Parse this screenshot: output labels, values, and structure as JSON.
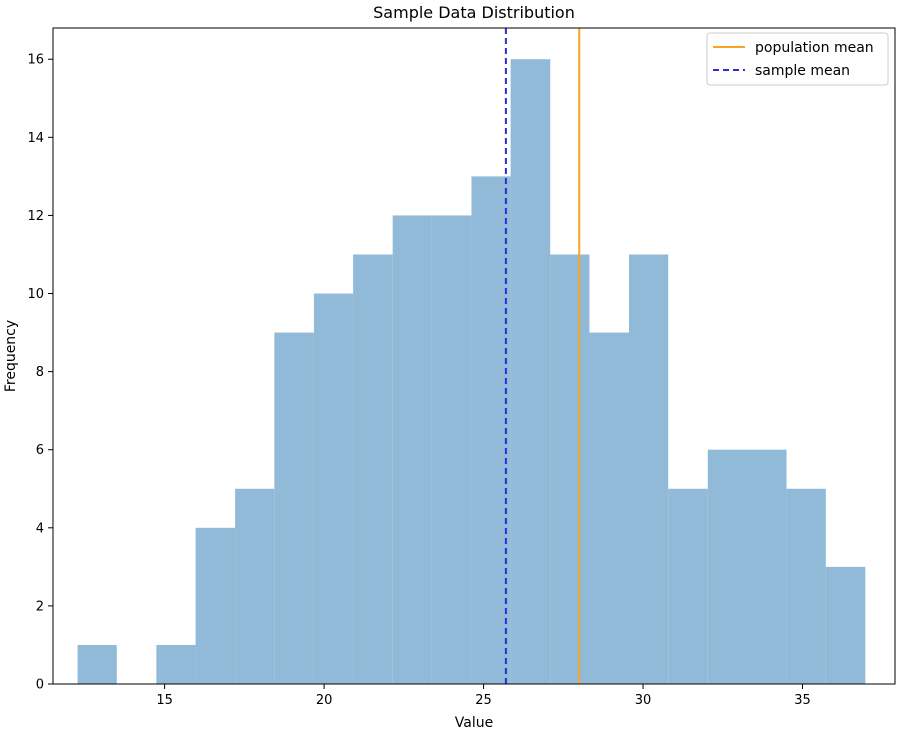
{
  "chart_data": {
    "type": "bar",
    "title": "Sample Data Distribution",
    "xlabel": "Value",
    "ylabel": "Frequency",
    "xlim": [
      11.5,
      37.9
    ],
    "ylim": [
      0,
      16.8
    ],
    "xticks": [
      15,
      20,
      25,
      30,
      35
    ],
    "yticks": [
      0,
      2,
      4,
      6,
      8,
      10,
      12,
      14,
      16
    ],
    "bins": [
      {
        "start": 12.27,
        "end": 13.5,
        "count": 1
      },
      {
        "start": 13.5,
        "end": 14.74,
        "count": 0
      },
      {
        "start": 14.74,
        "end": 15.97,
        "count": 1
      },
      {
        "start": 15.97,
        "end": 17.21,
        "count": 4
      },
      {
        "start": 17.21,
        "end": 18.44,
        "count": 5
      },
      {
        "start": 18.44,
        "end": 19.68,
        "count": 9
      },
      {
        "start": 19.68,
        "end": 20.91,
        "count": 10
      },
      {
        "start": 20.91,
        "end": 22.15,
        "count": 11
      },
      {
        "start": 22.15,
        "end": 23.38,
        "count": 12
      },
      {
        "start": 23.38,
        "end": 24.62,
        "count": 12
      },
      {
        "start": 24.62,
        "end": 25.85,
        "count": 13
      },
      {
        "start": 25.85,
        "end": 27.09,
        "count": 16
      },
      {
        "start": 27.09,
        "end": 28.32,
        "count": 11
      },
      {
        "start": 28.32,
        "end": 29.56,
        "count": 9
      },
      {
        "start": 29.56,
        "end": 30.79,
        "count": 11
      },
      {
        "start": 30.79,
        "end": 32.03,
        "count": 5
      },
      {
        "start": 32.03,
        "end": 33.26,
        "count": 6
      },
      {
        "start": 33.26,
        "end": 34.5,
        "count": 6
      },
      {
        "start": 34.5,
        "end": 35.73,
        "count": 5
      },
      {
        "start": 35.73,
        "end": 36.97,
        "count": 3
      }
    ],
    "bar_color": "#91bad9",
    "lines": [
      {
        "name": "population mean",
        "x": 28.0,
        "color": "#f5a623",
        "style": "solid"
      },
      {
        "name": "sample mean",
        "x": 25.7,
        "color": "#2b2bd9",
        "style": "dashed"
      }
    ],
    "legend_position": "top-right",
    "grid": false
  }
}
